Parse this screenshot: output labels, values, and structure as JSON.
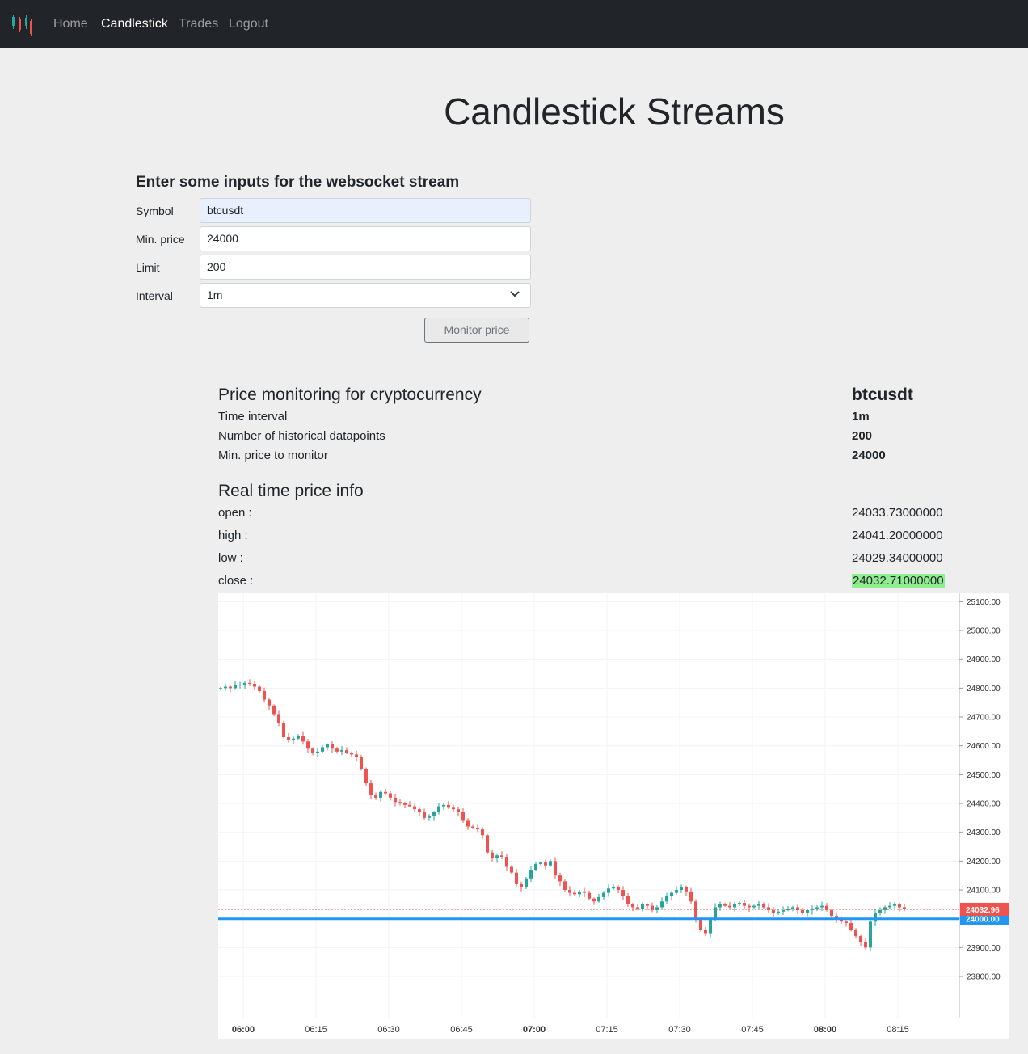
{
  "nav": {
    "brand_icon": "candlestick-logo-icon",
    "items": [
      {
        "label": "Home",
        "active": false
      },
      {
        "label": "Candlestick",
        "active": true
      },
      {
        "label": "Trades",
        "active": false
      },
      {
        "label": "Logout",
        "active": false
      }
    ]
  },
  "page": {
    "title": "Candlestick Streams"
  },
  "form": {
    "heading": "Enter some inputs for the websocket stream",
    "symbol_label": "Symbol",
    "symbol_value": "btcusdt",
    "min_price_label": "Min. price",
    "min_price_value": "24000",
    "limit_label": "Limit",
    "limit_value": "200",
    "interval_label": "Interval",
    "interval_value": "1m",
    "submit_label": "Monitor price"
  },
  "monitoring": {
    "heading": "Price monitoring for cryptocurrency",
    "symbol": "btcusdt",
    "interval_label": "Time interval",
    "interval_value": "1m",
    "datapoints_label": "Number of historical datapoints",
    "datapoints_value": "200",
    "min_price_label": "Min. price to monitor",
    "min_price_value": "24000"
  },
  "realtime": {
    "heading": "Real time price info",
    "open_label": "open :",
    "open_value": "24033.73000000",
    "high_label": "high :",
    "high_value": "24041.20000000",
    "low_label": "low :",
    "low_value": "24029.34000000",
    "close_label": "close :",
    "close_value": "24032.71000000"
  },
  "chart_data": {
    "type": "candlestick",
    "interval": "1m",
    "y_ticks": [
      "25100.00",
      "25000.00",
      "24900.00",
      "24800.00",
      "24700.00",
      "24600.00",
      "24500.00",
      "24400.00",
      "24300.00",
      "24200.00",
      "24100.00",
      "24000.00",
      "23900.00",
      "23800.00"
    ],
    "ylim": [
      23730,
      25115
    ],
    "x_ticks": [
      {
        "label": "06:00",
        "bold": true
      },
      {
        "label": "06:15",
        "bold": false
      },
      {
        "label": "06:30",
        "bold": false
      },
      {
        "label": "06:45",
        "bold": false
      },
      {
        "label": "07:00",
        "bold": true
      },
      {
        "label": "07:15",
        "bold": false
      },
      {
        "label": "07:30",
        "bold": false
      },
      {
        "label": "07:45",
        "bold": false
      },
      {
        "label": "08:00",
        "bold": true
      },
      {
        "label": "08:15",
        "bold": false
      }
    ],
    "last_price_label": "24032.96",
    "last_price": 24032.96,
    "min_price_line_label": "24000.00",
    "min_price_line": 24000,
    "up_color": "#26a69a",
    "down_color": "#ef5350",
    "min_line_color": "#2196f3",
    "close_series": [
      24800,
      24805,
      24800,
      24810,
      24812,
      24818,
      24815,
      24805,
      24790,
      24760,
      24740,
      24710,
      24680,
      24630,
      24620,
      24625,
      24635,
      24615,
      24590,
      24575,
      24580,
      24595,
      24605,
      24590,
      24580,
      24585,
      24575,
      24570,
      24560,
      24520,
      24470,
      24430,
      24420,
      24440,
      24435,
      24420,
      24405,
      24400,
      24395,
      24390,
      24380,
      24370,
      24350,
      24355,
      24370,
      24390,
      24395,
      24385,
      24380,
      24370,
      24340,
      24320,
      24315,
      24310,
      24290,
      24230,
      24210,
      24220,
      24215,
      24180,
      24160,
      24120,
      24110,
      24140,
      24170,
      24190,
      24195,
      24185,
      24200,
      24150,
      24130,
      24100,
      24090,
      24085,
      24095,
      24090,
      24070,
      24060,
      24075,
      24090,
      24105,
      24110,
      24100,
      24080,
      24050,
      24040,
      24035,
      24050,
      24045,
      24030,
      24040,
      24060,
      24080,
      24090,
      24100,
      24110,
      24095,
      24060,
      24000,
      23960,
      23950,
      24000,
      24040,
      24050,
      24045,
      24040,
      24050,
      24055,
      24045,
      24040,
      24045,
      24050,
      24040,
      24030,
      24020,
      24025,
      24030,
      24035,
      24040,
      24030,
      24020,
      24030,
      24035,
      24040,
      24045,
      24030,
      24010,
      24000,
      23990,
      23985,
      23960,
      23940,
      23920,
      23900,
      23990,
      24020,
      24030,
      24040,
      24045,
      24050,
      24040,
      24033
    ]
  }
}
